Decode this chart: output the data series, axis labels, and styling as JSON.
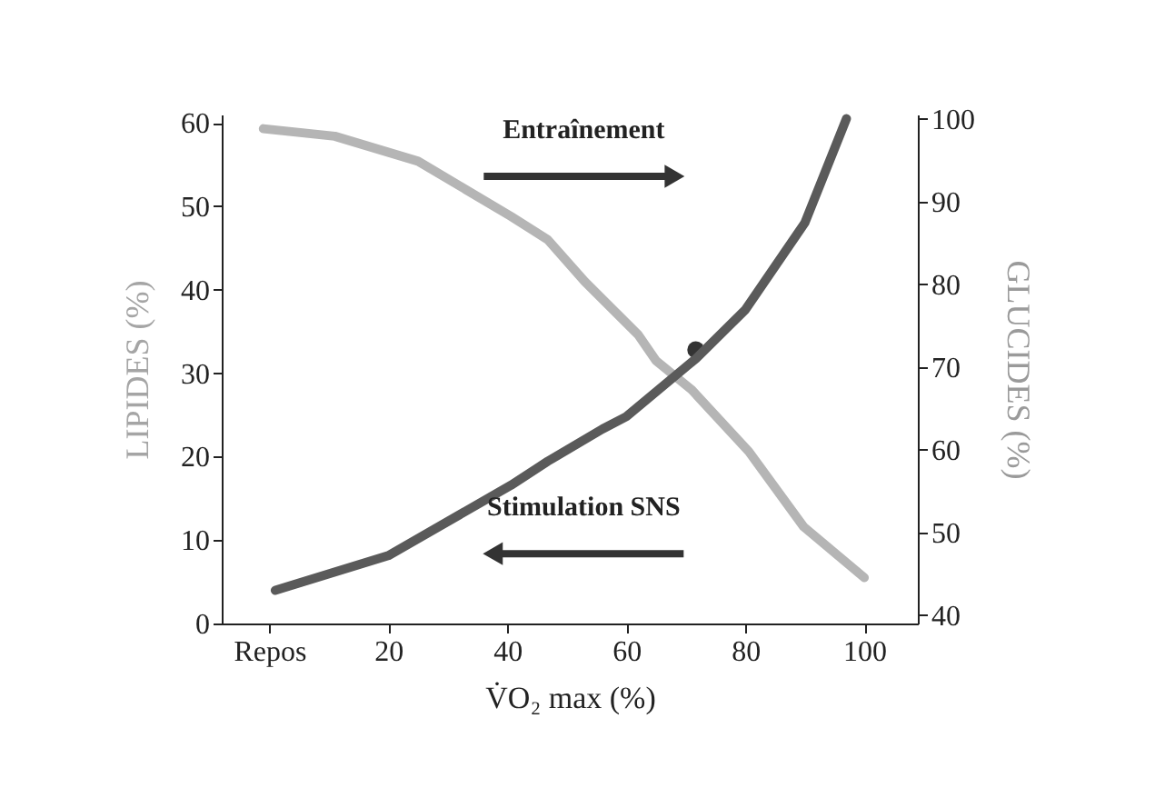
{
  "chart_data": {
    "type": "line",
    "xlabel": "V̇O₂ max  (%)",
    "ylabel": "LIPIDES (%)",
    "y2label": "GLUCIDES (%)",
    "xlim": [
      -8,
      109
    ],
    "xticks": [
      {
        "value": 0,
        "label": "Repos"
      },
      20,
      40,
      60,
      80,
      100
    ],
    "ylim": [
      0,
      61
    ],
    "yticks": [
      0,
      10,
      20,
      30,
      40,
      50,
      60
    ],
    "y2lim": [
      39,
      100.5
    ],
    "y2ticks": [
      40,
      50,
      60,
      70,
      80,
      90,
      100
    ],
    "grid": false,
    "line_style": "solid",
    "annotations": [
      "Entraînement",
      "Stimulation SNS"
    ],
    "series": [
      {
        "color": "#b5b5b5",
        "x": [
          -1,
          11,
          25,
          40.6,
          46.8,
          53,
          62,
          65,
          71,
          80.6,
          89.8,
          100
        ],
        "values": [
          59.3,
          58.4,
          55.4,
          48.8,
          46,
          41,
          34.6,
          31.5,
          28,
          20.6,
          11.6,
          5.5
        ]
      },
      {
        "color": "#5a5a5a",
        "axis": "y2",
        "x": [
          1,
          20,
          40.6,
          46.8,
          56,
          60,
          71.7,
          80,
          90,
          97
        ],
        "values": [
          43,
          47.2,
          55.7,
          58.6,
          62.5,
          64,
          71,
          76.9,
          87.4,
          100
        ]
      },
      {
        "type": "scatter",
        "marker": "circle",
        "color": "#333333",
        "x": [
          71.7
        ],
        "values": [
          32.8
        ]
      }
    ]
  }
}
